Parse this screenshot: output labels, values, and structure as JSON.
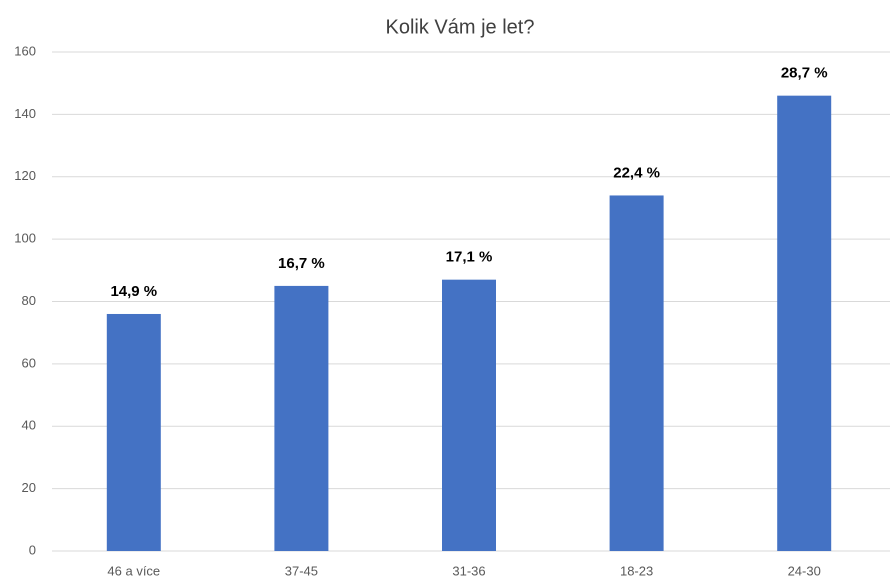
{
  "chart_data": {
    "type": "bar",
    "title": "Kolik Vám je let?",
    "categories": [
      "46 a více",
      "37-45",
      "31-36",
      "18-23",
      "24-30"
    ],
    "values": [
      76,
      85,
      87,
      114,
      146
    ],
    "data_labels": [
      "14,9 %",
      "16,7 %",
      "17,1 %",
      "22,4 %",
      "28,7 %"
    ],
    "color": "#4472c4",
    "ylim": [
      0,
      160
    ],
    "yticks": [
      0,
      20,
      40,
      60,
      80,
      100,
      120,
      140,
      160
    ],
    "grid": true
  }
}
